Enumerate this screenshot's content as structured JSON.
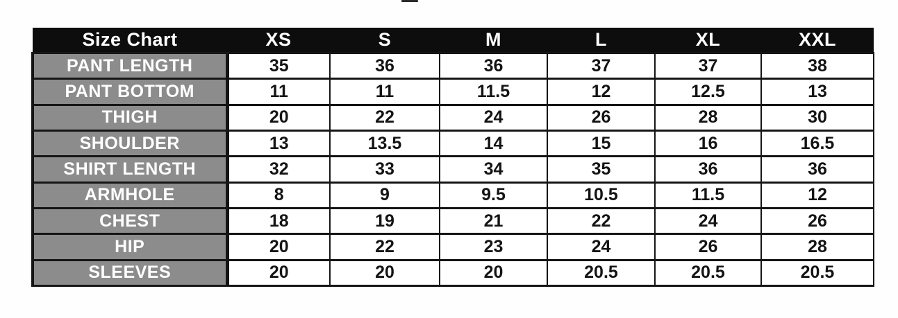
{
  "table": {
    "title": "Size Chart",
    "size_headers": [
      "XS",
      "S",
      "M",
      "L",
      "XL",
      "XXL"
    ],
    "rows": [
      {
        "label": "PANT LENGTH",
        "values": [
          "35",
          "36",
          "36",
          "37",
          "37",
          "38"
        ]
      },
      {
        "label": "PANT BOTTOM",
        "values": [
          "11",
          "11",
          "11.5",
          "12",
          "12.5",
          "13"
        ]
      },
      {
        "label": "THIGH",
        "values": [
          "20",
          "22",
          "24",
          "26",
          "28",
          "30"
        ]
      },
      {
        "label": "SHOULDER",
        "values": [
          "13",
          "13.5",
          "14",
          "15",
          "16",
          "16.5"
        ]
      },
      {
        "label": "SHIRT LENGTH",
        "values": [
          "32",
          "33",
          "34",
          "35",
          "36",
          "36"
        ]
      },
      {
        "label": "ARMHOLE",
        "values": [
          "8",
          "9",
          "9.5",
          "10.5",
          "11.5",
          "12"
        ]
      },
      {
        "label": "CHEST",
        "values": [
          "18",
          "19",
          "21",
          "22",
          "24",
          "26"
        ]
      },
      {
        "label": "HIP",
        "values": [
          "20",
          "22",
          "23",
          "24",
          "26",
          "28"
        ]
      },
      {
        "label": "SLEEVES",
        "values": [
          "20",
          "20",
          "20",
          "20.5",
          "20.5",
          "20.5"
        ]
      }
    ],
    "colors": {
      "header_bg": "#0d0d0d",
      "header_text": "#ffffff",
      "label_bg": "#8c8c8c",
      "label_text": "#ffffff",
      "cell_bg": "#ffffff",
      "cell_text": "#141414",
      "border": "#151515"
    }
  },
  "chart_data": {
    "type": "table",
    "title": "Size Chart",
    "columns": [
      "Size Chart",
      "XS",
      "S",
      "M",
      "L",
      "XL",
      "XXL"
    ],
    "rows": [
      [
        "PANT LENGTH",
        35,
        36,
        36,
        37,
        37,
        38
      ],
      [
        "PANT BOTTOM",
        11,
        11,
        11.5,
        12,
        12.5,
        13
      ],
      [
        "THIGH",
        20,
        22,
        24,
        26,
        28,
        30
      ],
      [
        "SHOULDER",
        13,
        13.5,
        14,
        15,
        16,
        16.5
      ],
      [
        "SHIRT LENGTH",
        32,
        33,
        34,
        35,
        36,
        36
      ],
      [
        "ARMHOLE",
        8,
        9,
        9.5,
        10.5,
        11.5,
        12
      ],
      [
        "CHEST",
        18,
        19,
        21,
        22,
        24,
        26
      ],
      [
        "HIP",
        20,
        22,
        23,
        24,
        26,
        28
      ],
      [
        "SLEEVES",
        20,
        20,
        20,
        20.5,
        20.5,
        20.5
      ]
    ]
  }
}
